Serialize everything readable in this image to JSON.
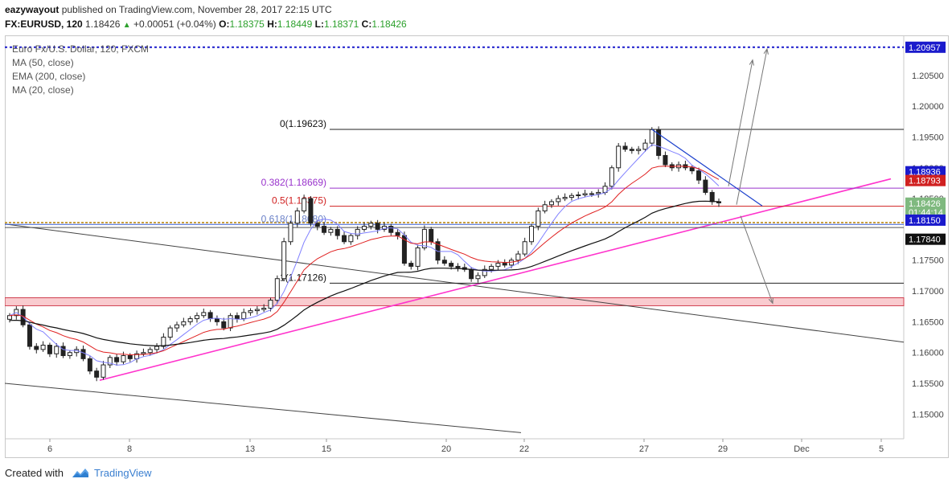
{
  "header": {
    "author": "eazywayout",
    "published_text": "published on TradingView.com, November 28, 2017 22:15 UTC",
    "symbol": "FX:EURUSD, 120",
    "last": "1.18426",
    "change": "+0.00051 (+0.04%)",
    "ohlc_labels": {
      "o": "O:",
      "h": "H:",
      "l": "L:",
      "c": "C:"
    },
    "ohlc_values": {
      "o": "1.18375",
      "h": "1.18449",
      "l": "1.18371",
      "c": "1.18426"
    }
  },
  "legend": {
    "title": "Euro Fx/U.S. Dollar, 120, FXCM",
    "ind1": "MA (50, close)",
    "ind2": "EMA (200, close)",
    "ind3": "MA (20, close)"
  },
  "colors": {
    "up": "#2ca02c",
    "ma20": "#8080ff",
    "ma50": "#e02020",
    "ema200": "#111111",
    "fib": "#9933cc",
    "pink": "#ff33cc",
    "blue_dotted": "#1a1acc",
    "zone": "#f4a0a8"
  },
  "chart_data": {
    "type": "candlestick",
    "ylim": [
      1.146,
      1.2115
    ],
    "x_ticks": [
      "6",
      "8",
      "13",
      "15",
      "20",
      "22",
      "27",
      "29",
      "Dec",
      "5"
    ],
    "y_ticks": [
      "1.20500",
      "1.20000",
      "1.19500",
      "1.19000",
      "1.18500",
      "1.17500",
      "1.17000",
      "1.16500",
      "1.16000",
      "1.15500",
      "1.15000"
    ],
    "fib_levels": [
      {
        "label": "0(1.19623)",
        "value": 1.19623
      },
      {
        "label": "0.382(1.18669)",
        "value": 1.18669
      },
      {
        "label": "0.5(1.18375)",
        "value": 1.18375
      },
      {
        "label": "0.618(1.18080)",
        "value": 1.1808
      },
      {
        "label": "1(1.17126)",
        "value": 1.17126
      }
    ],
    "price_tags": [
      {
        "label": "1.20957",
        "value": 1.20957
      },
      {
        "label": "1.18936",
        "value": 1.18936
      },
      {
        "label": "1.18793",
        "value": 1.18793
      },
      {
        "label": "1.18426",
        "value": 1.18426
      },
      {
        "label": "01:44:14",
        "value": 1.1828
      },
      {
        "label": "1.18150",
        "value": 1.1815
      },
      {
        "label": "1.17840",
        "value": 1.1784
      }
    ],
    "resistance_price": 1.20957,
    "support_zone": [
      1.1676,
      1.1689
    ],
    "closes": [
      1.166,
      1.167,
      1.1645,
      1.161,
      1.1605,
      1.1612,
      1.1598,
      1.161,
      1.1595,
      1.16,
      1.1605,
      1.159,
      1.157,
      1.156,
      1.158,
      1.1592,
      1.1585,
      1.1595,
      1.159,
      1.1598,
      1.16,
      1.1605,
      1.161,
      1.1625,
      1.164,
      1.1645,
      1.165,
      1.1655,
      1.166,
      1.1665,
      1.1655,
      1.165,
      1.164,
      1.166,
      1.1655,
      1.1665,
      1.1668,
      1.167,
      1.1672,
      1.1685,
      1.172,
      1.178,
      1.181,
      1.183,
      1.185,
      1.181,
      1.1805,
      1.1795,
      1.18,
      1.179,
      1.178,
      1.179,
      1.18,
      1.1805,
      1.181,
      1.18,
      1.1805,
      1.1795,
      1.179,
      1.1745,
      1.174,
      1.177,
      1.18,
      1.178,
      1.175,
      1.1745,
      1.174,
      1.1738,
      1.1735,
      1.172,
      1.1725,
      1.1735,
      1.174,
      1.1745,
      1.1742,
      1.175,
      1.176,
      1.178,
      1.1805,
      1.183,
      1.184,
      1.1845,
      1.185,
      1.1852,
      1.1855,
      1.1856,
      1.1858,
      1.1858,
      1.186,
      1.187,
      1.19,
      1.1935,
      1.193,
      1.1928,
      1.193,
      1.194,
      1.1962,
      1.192,
      1.1905,
      1.19,
      1.1905,
      1.19,
      1.1895,
      1.188,
      1.186,
      1.1845,
      1.1843
    ]
  },
  "footer": {
    "created_with": "Created with",
    "brand": "TradingView"
  }
}
